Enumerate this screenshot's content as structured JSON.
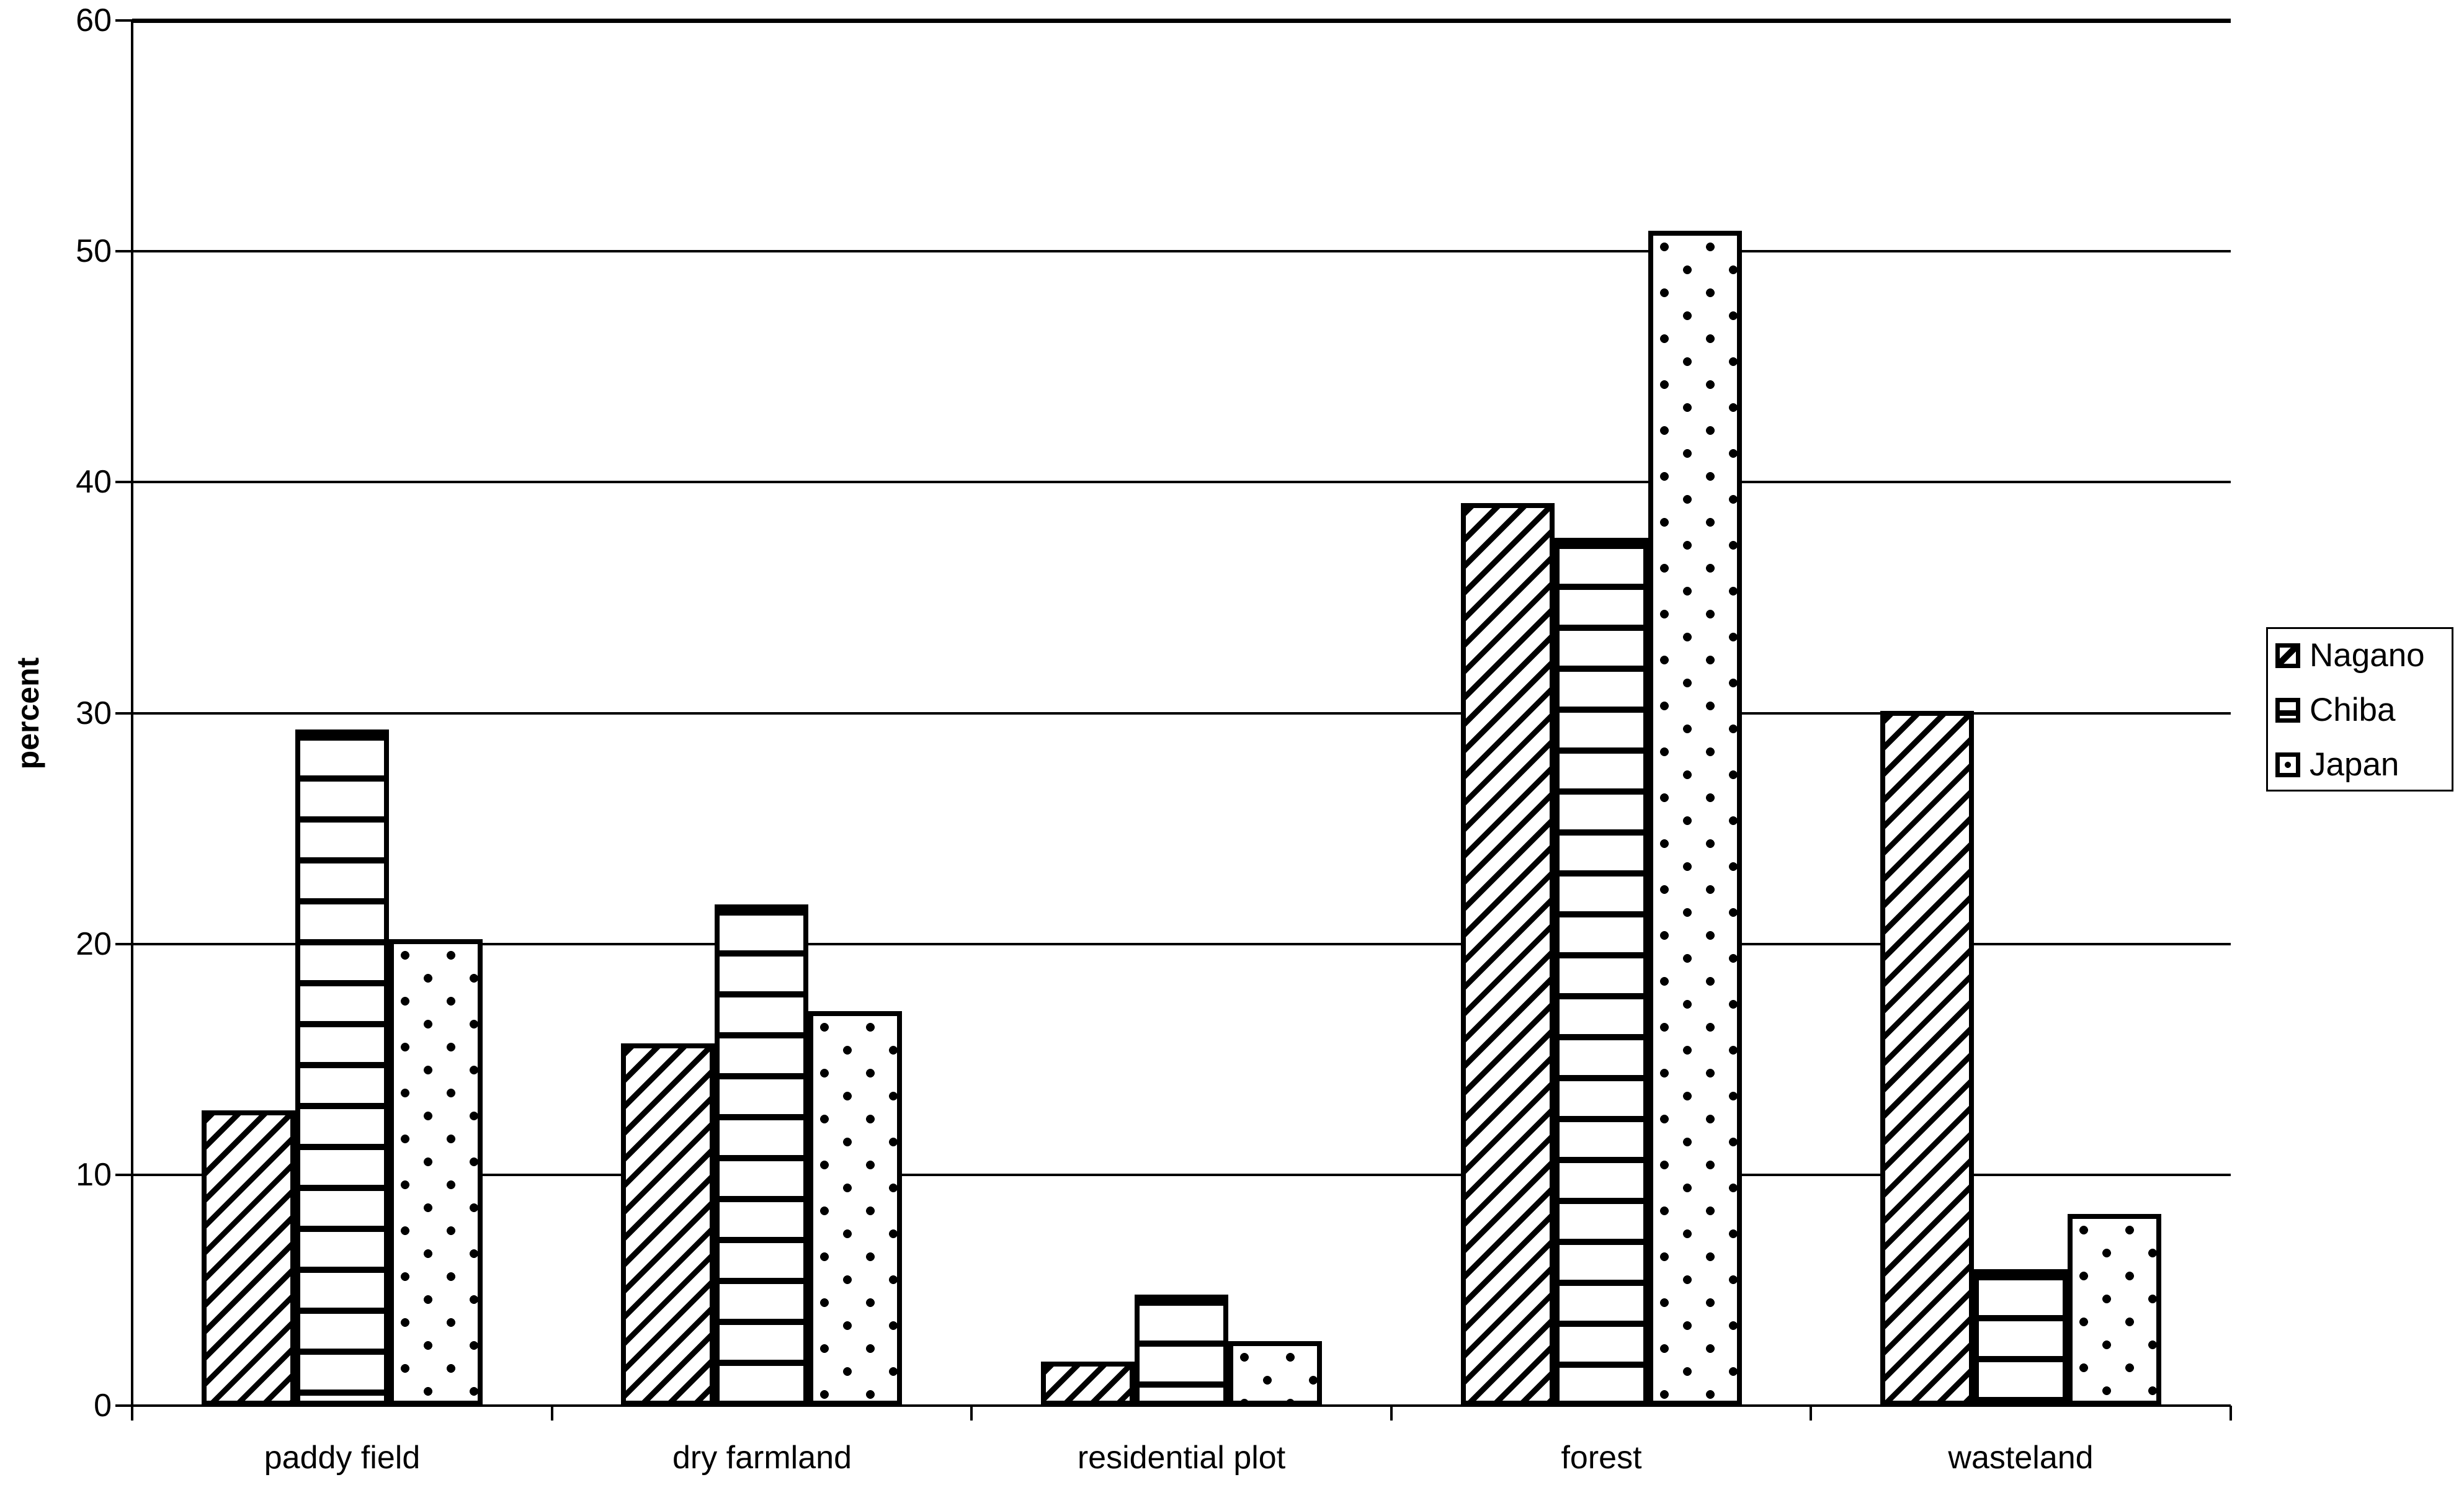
{
  "chart_data": {
    "type": "bar",
    "title": "",
    "ylabel": "percent",
    "xlabel": "",
    "categories": [
      "paddy field",
      "dry farmland",
      "residential plot",
      "forest",
      "wasteland"
    ],
    "series": [
      {
        "name": "Nagano",
        "pattern": "diagonal-hatch",
        "values": [
          12.8,
          15.7,
          1.9,
          39.1,
          30.1
        ]
      },
      {
        "name": "Chiba",
        "pattern": "horizontal-stripes",
        "values": [
          29.3,
          21.7,
          4.8,
          37.6,
          5.9
        ]
      },
      {
        "name": "Japan",
        "pattern": "dots",
        "values": [
          20.2,
          17.1,
          2.8,
          50.9,
          8.3
        ]
      }
    ],
    "ylim": [
      0,
      60
    ],
    "yticks": [
      0,
      10,
      20,
      30,
      40,
      50,
      60
    ],
    "grid": true,
    "legend_position": "right",
    "fill_color": "#ffffff",
    "line_color": "#000000"
  },
  "colors": {
    "background": "#ffffff",
    "foreground": "#000000"
  }
}
